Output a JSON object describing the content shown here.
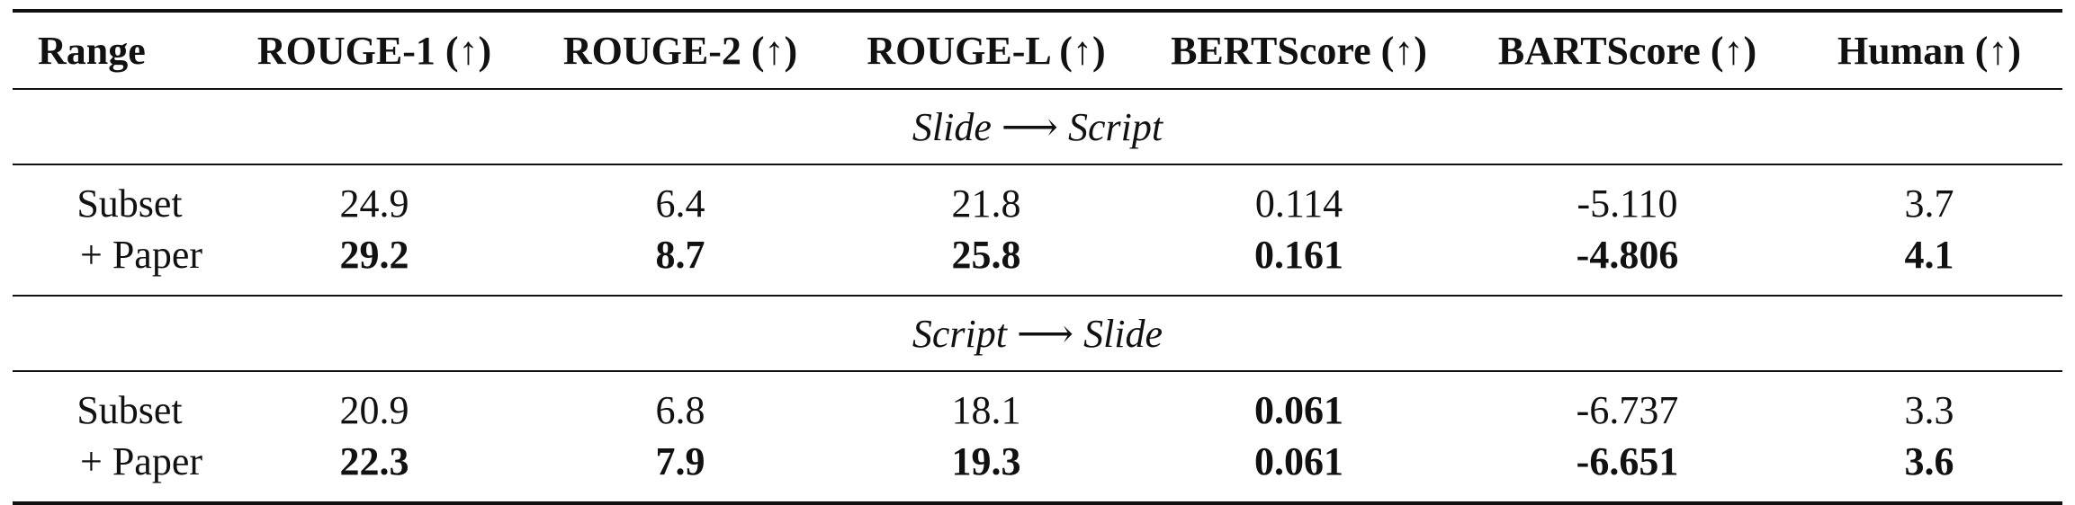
{
  "table": {
    "headers": [
      "Range",
      "ROUGE-1 (↑)",
      "ROUGE-2 (↑)",
      "ROUGE-L (↑)",
      "BERTScore (↑)",
      "BARTScore (↑)",
      "Human (↑)"
    ],
    "sections": [
      {
        "title": "Slide ⟶ Script",
        "rows": [
          {
            "range": "Subset",
            "values": [
              "24.9",
              "6.4",
              "21.8",
              "0.114",
              "-5.110",
              "3.7"
            ],
            "bold": [
              false,
              false,
              false,
              false,
              false,
              false
            ]
          },
          {
            "range": "+ Paper",
            "values": [
              "29.2",
              "8.7",
              "25.8",
              "0.161",
              "-4.806",
              "4.1"
            ],
            "bold": [
              true,
              true,
              true,
              true,
              true,
              true
            ]
          }
        ]
      },
      {
        "title": "Script ⟶ Slide",
        "rows": [
          {
            "range": "Subset",
            "values": [
              "20.9",
              "6.8",
              "18.1",
              "0.061",
              "-6.737",
              "3.3"
            ],
            "bold": [
              false,
              false,
              false,
              true,
              false,
              false
            ]
          },
          {
            "range": "+ Paper",
            "values": [
              "22.3",
              "7.9",
              "19.3",
              "0.061",
              "-6.651",
              "3.6"
            ],
            "bold": [
              true,
              true,
              true,
              true,
              true,
              true
            ]
          }
        ]
      }
    ]
  }
}
